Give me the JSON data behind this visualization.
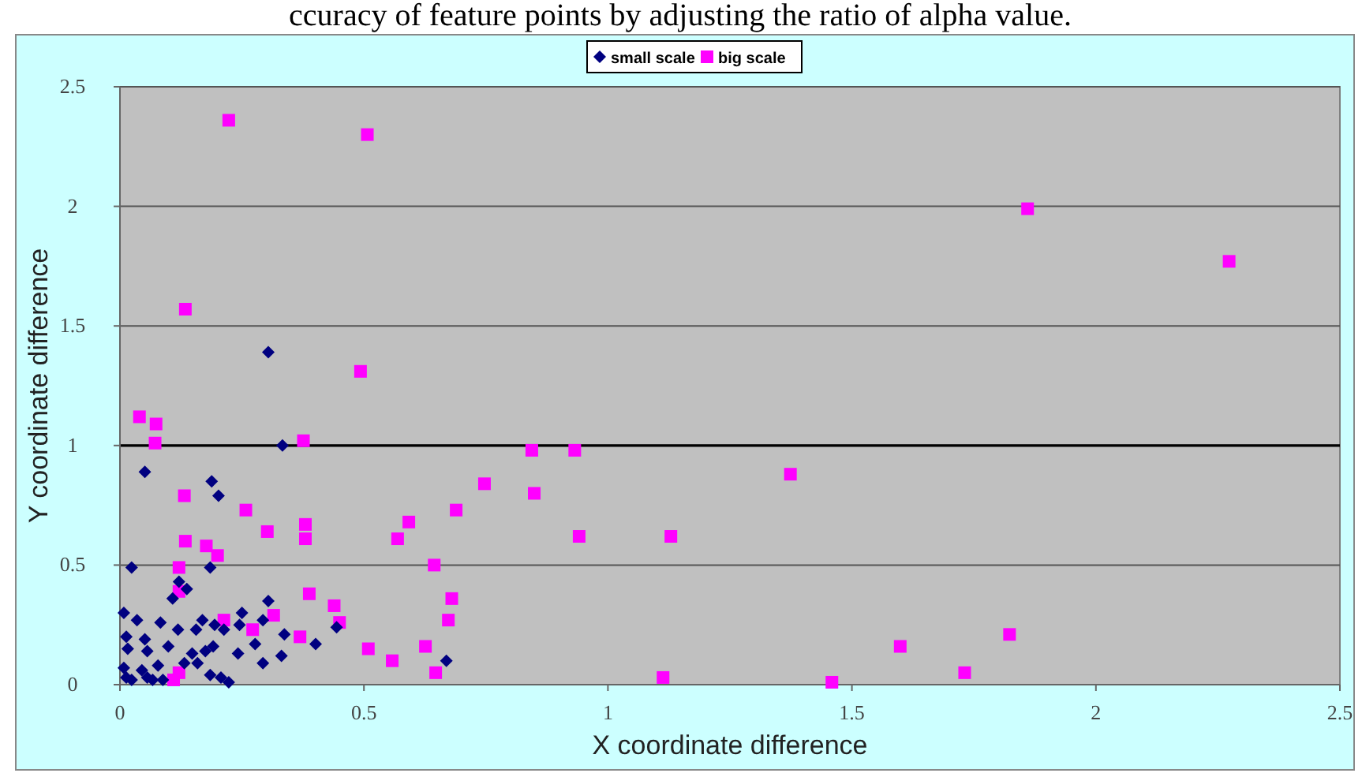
{
  "chart_data": {
    "type": "scatter",
    "xlabel": "X coordinate difference",
    "ylabel": "Y coordinate difference",
    "annotations": [
      "ccuracy of feature points by adjusting the ratio of alpha value."
    ],
    "xlim": [
      0,
      2.5
    ],
    "xticks": [
      0,
      0.5,
      1,
      1.5,
      2,
      2.5
    ],
    "ylim": [
      0,
      2.5
    ],
    "yticks": [
      0,
      0.5,
      1,
      1.5,
      2,
      2.5
    ],
    "grid": "y",
    "legend": "top",
    "ref_lines": [
      {
        "axis": "y",
        "value": 1,
        "color": "#000000"
      }
    ],
    "series": [
      {
        "name": "small scale",
        "color": "#000080",
        "marker": "diamond",
        "x": [
          0.304,
          0.333,
          0.051,
          0.188,
          0.202,
          0.024,
          0.185,
          0.121,
          0.137,
          0.108,
          0.304,
          0.008,
          0.25,
          0.035,
          0.083,
          0.293,
          0.337,
          0.444,
          0.119,
          0.156,
          0.213,
          0.245,
          0.401,
          0.277,
          0.013,
          0.051,
          0.016,
          0.056,
          0.099,
          0.148,
          0.175,
          0.191,
          0.242,
          0.331,
          0.293,
          0.669,
          0.008,
          0.045,
          0.078,
          0.132,
          0.159,
          0.013,
          0.056,
          0.088,
          0.185,
          0.207,
          0.223,
          0.024,
          0.067,
          0.169,
          0.194
        ],
        "values": [
          1.39,
          1.0,
          0.89,
          0.85,
          0.79,
          0.49,
          0.49,
          0.43,
          0.4,
          0.36,
          0.35,
          0.3,
          0.3,
          0.27,
          0.26,
          0.27,
          0.21,
          0.24,
          0.23,
          0.23,
          0.23,
          0.25,
          0.17,
          0.17,
          0.2,
          0.19,
          0.15,
          0.14,
          0.16,
          0.13,
          0.14,
          0.16,
          0.13,
          0.12,
          0.09,
          0.1,
          0.07,
          0.06,
          0.08,
          0.09,
          0.09,
          0.03,
          0.03,
          0.02,
          0.04,
          0.03,
          0.01,
          0.02,
          0.02,
          0.27,
          0.25
        ]
      },
      {
        "name": "big scale",
        "color": "#ff00ff",
        "marker": "square",
        "x": [
          0.223,
          0.507,
          0.134,
          0.493,
          0.04,
          0.074,
          0.072,
          0.376,
          0.844,
          0.932,
          0.747,
          0.849,
          0.132,
          0.258,
          0.689,
          0.302,
          0.38,
          0.38,
          0.592,
          0.569,
          0.941,
          1.129,
          0.134,
          0.177,
          0.2,
          0.121,
          0.644,
          0.121,
          0.388,
          0.439,
          0.68,
          0.45,
          0.673,
          0.315,
          0.213,
          0.272,
          0.369,
          0.509,
          0.558,
          0.626,
          0.647,
          1.113,
          0.121,
          0.11,
          1.374,
          1.86,
          2.273,
          1.599,
          1.823,
          1.731,
          1.459
        ],
        "values": [
          2.36,
          2.3,
          1.57,
          1.31,
          1.12,
          1.09,
          1.01,
          1.02,
          0.98,
          0.98,
          0.84,
          0.8,
          0.79,
          0.73,
          0.73,
          0.64,
          0.67,
          0.61,
          0.68,
          0.61,
          0.62,
          0.62,
          0.6,
          0.58,
          0.54,
          0.49,
          0.5,
          0.39,
          0.38,
          0.33,
          0.36,
          0.26,
          0.27,
          0.29,
          0.27,
          0.23,
          0.2,
          0.15,
          0.1,
          0.16,
          0.05,
          0.03,
          0.05,
          0.02,
          0.88,
          1.99,
          1.77,
          0.16,
          0.21,
          0.05,
          0.01
        ]
      }
    ]
  }
}
